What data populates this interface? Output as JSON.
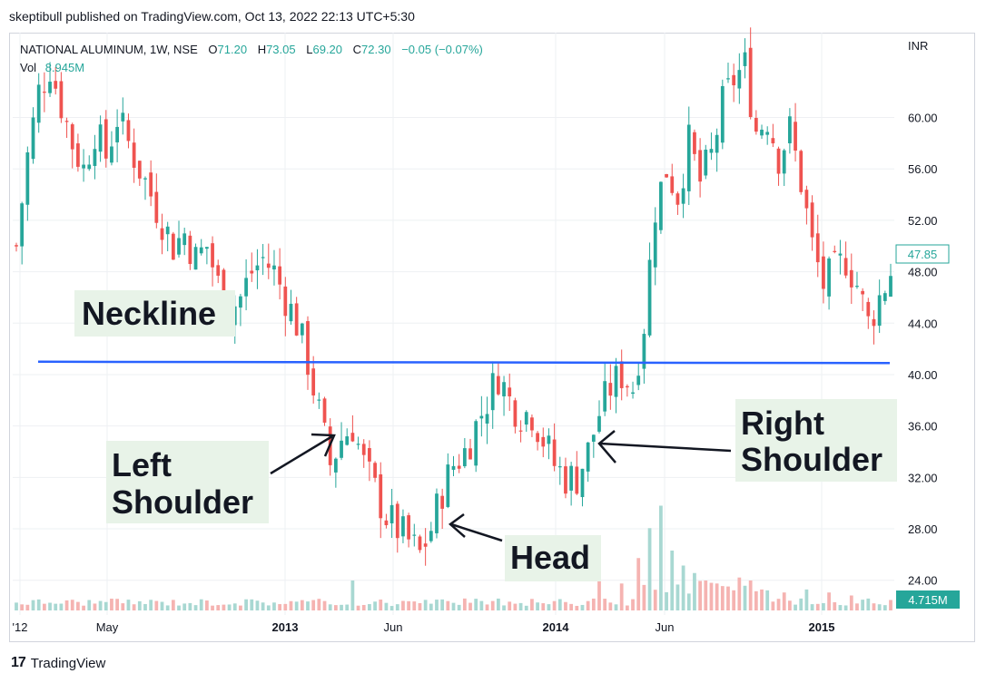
{
  "publisher_line": "skeptibull published on TradingView.com, Oct 13, 2022 22:13 UTC+5:30",
  "footer": {
    "logo_glyph": "17",
    "brand": "TradingView"
  },
  "colors": {
    "up": "#26a69a",
    "down": "#ef5350",
    "neckline": "#2962ff",
    "label_bg": "#e8f3e8",
    "grid": "#eef0f3"
  },
  "chart_data": {
    "type": "candlestick",
    "title": "NATIONAL ALUMINUM, 1W, NSE",
    "ohlc": {
      "o_label": "O",
      "o": "71.20",
      "h_label": "H",
      "h": "73.05",
      "l_label": "L",
      "l": "69.20",
      "c_label": "C",
      "c": "72.30",
      "change": "−0.05 (−0.07%)"
    },
    "volume_legend": {
      "label": "Vol",
      "value": "8.945M"
    },
    "currency": "INR",
    "y_ticks": [
      "60.00",
      "56.00",
      "52.00",
      "48.00",
      "44.00",
      "40.00",
      "36.00",
      "32.00",
      "28.00",
      "24.00"
    ],
    "y_range": [
      21.3,
      66.6
    ],
    "x_ticks": [
      "'12",
      "May",
      "2013",
      "Jun",
      "2014",
      "Jun",
      "2015"
    ],
    "last_price": "47.85",
    "last_volume": "4.715M",
    "neckline_price": 41.0,
    "annotations": [
      {
        "text_lines": [
          "Neckline"
        ]
      },
      {
        "text_lines": [
          "Left",
          "Shoulder"
        ]
      },
      {
        "text_lines": [
          "Head"
        ]
      },
      {
        "text_lines": [
          "Right",
          "Shoulder"
        ]
      }
    ],
    "close_path": [
      [
        0,
        50
      ],
      [
        2,
        57
      ],
      [
        4,
        62
      ],
      [
        6,
        64
      ],
      [
        8,
        61
      ],
      [
        10,
        58
      ],
      [
        12,
        56
      ],
      [
        14,
        59
      ],
      [
        16,
        57
      ],
      [
        18,
        60
      ],
      [
        20,
        58
      ],
      [
        22,
        56
      ],
      [
        24,
        54
      ],
      [
        26,
        52
      ],
      [
        28,
        50
      ],
      [
        30,
        51
      ],
      [
        32,
        49
      ],
      [
        34,
        50
      ],
      [
        36,
        47
      ],
      [
        38,
        45
      ],
      [
        40,
        46
      ],
      [
        42,
        48
      ],
      [
        44,
        49
      ],
      [
        46,
        48
      ],
      [
        48,
        46
      ],
      [
        50,
        44
      ],
      [
        52,
        41
      ],
      [
        54,
        37
      ],
      [
        56,
        33
      ],
      [
        58,
        35
      ],
      [
        60,
        36
      ],
      [
        62,
        33
      ],
      [
        64,
        31
      ],
      [
        66,
        29
      ],
      [
        68,
        28
      ],
      [
        70,
        27
      ],
      [
        72,
        26
      ],
      [
        74,
        28
      ],
      [
        76,
        31
      ],
      [
        78,
        33
      ],
      [
        80,
        34
      ],
      [
        82,
        36
      ],
      [
        84,
        38
      ],
      [
        86,
        40
      ],
      [
        88,
        38
      ],
      [
        90,
        37
      ],
      [
        92,
        37
      ],
      [
        94,
        35
      ],
      [
        96,
        33
      ],
      [
        98,
        32
      ],
      [
        100,
        32
      ],
      [
        102,
        34
      ],
      [
        104,
        37
      ],
      [
        106,
        39
      ],
      [
        108,
        40
      ],
      [
        110,
        39
      ],
      [
        112,
        44
      ],
      [
        114,
        53
      ],
      [
        116,
        56
      ],
      [
        118,
        54
      ],
      [
        120,
        58
      ],
      [
        122,
        55
      ],
      [
        124,
        57
      ],
      [
        126,
        61
      ],
      [
        128,
        63
      ],
      [
        130,
        64
      ],
      [
        132,
        59
      ],
      [
        134,
        60
      ],
      [
        136,
        57
      ],
      [
        138,
        59
      ],
      [
        140,
        55
      ],
      [
        142,
        50
      ],
      [
        144,
        47
      ],
      [
        146,
        48
      ],
      [
        148,
        49
      ],
      [
        150,
        47
      ],
      [
        152,
        44
      ],
      [
        154,
        46
      ],
      [
        156,
        48
      ]
    ],
    "volume_levels": [
      {
        "x": 60,
        "v": 0.2
      },
      {
        "x": 104,
        "v": 0.28
      },
      {
        "x": 108,
        "v": 0.18
      },
      {
        "x": 111,
        "v": 0.35
      },
      {
        "x": 113,
        "v": 0.55
      },
      {
        "x": 115,
        "v": 0.7
      },
      {
        "x": 117,
        "v": 0.4
      },
      {
        "x": 119,
        "v": 0.3
      },
      {
        "x": 121,
        "v": 0.25
      },
      {
        "x": 123,
        "v": 0.2
      },
      {
        "x": 125,
        "v": 0.18
      },
      {
        "x": 127,
        "v": 0.16
      },
      {
        "x": 129,
        "v": 0.22
      },
      {
        "x": 131,
        "v": 0.2
      },
      {
        "x": 133,
        "v": 0.14
      },
      {
        "x": 137,
        "v": 0.12
      },
      {
        "x": 141,
        "v": 0.14
      },
      {
        "x": 145,
        "v": 0.12
      },
      {
        "x": 149,
        "v": 0.1
      }
    ]
  }
}
